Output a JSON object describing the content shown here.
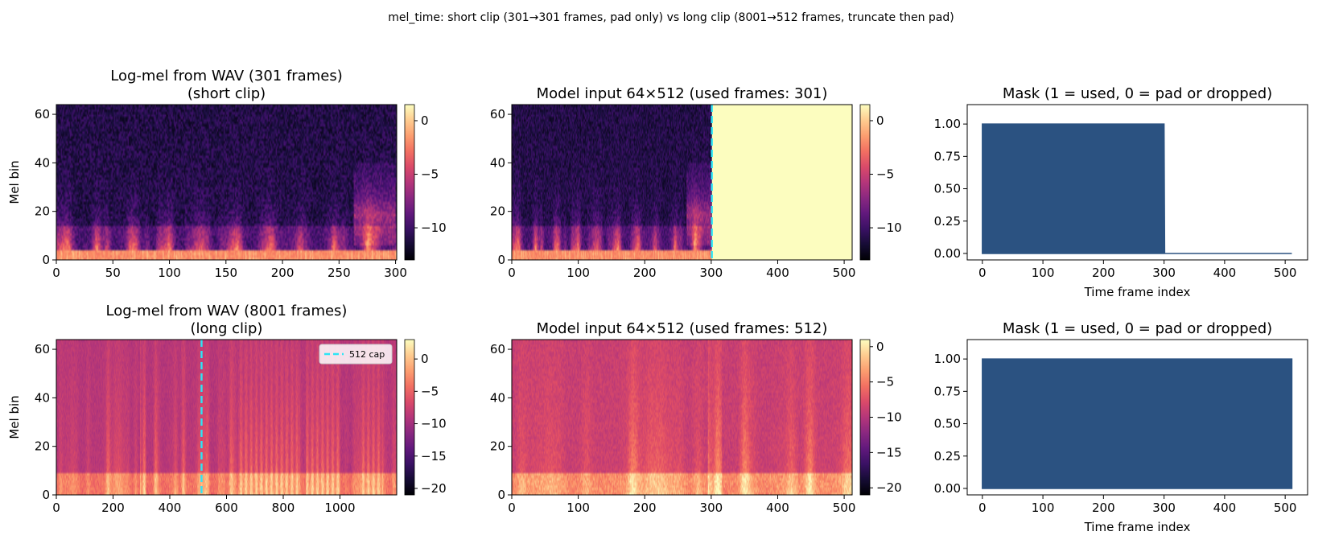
{
  "suptitle": "mel_time: short clip (301→301 frames, pad only) vs long clip (8001→512 frames, truncate then pad)",
  "colors": {
    "mask_fill": "#2b5281",
    "cap_line": "#2de5f5",
    "pad_fill": "#fdca8e",
    "colormap": "magma"
  },
  "chart_data": [
    {
      "id": "p00",
      "type": "heatmap",
      "title_lines": [
        "Log-mel from WAV (301 frames)",
        "(short clip)"
      ],
      "xlabel": "",
      "ylabel": "Mel bin",
      "xlim": [
        0,
        301
      ],
      "ylim": [
        0,
        64
      ],
      "xticks": [
        0,
        50,
        100,
        150,
        200,
        250,
        300
      ],
      "yticks": [
        0,
        20,
        40,
        60
      ],
      "frames": 301,
      "mel_bins": 64,
      "colorbar": {
        "range": [
          -13,
          1.5
        ],
        "ticks": [
          0,
          -5,
          -10
        ],
        "tick_labels": [
          "0",
          "−5",
          "−10"
        ]
      },
      "style": "short"
    },
    {
      "id": "p01",
      "type": "heatmap",
      "title_lines": [
        "Model input 64×512 (used frames: 301)"
      ],
      "xlabel": "",
      "ylabel": "",
      "xlim": [
        0,
        512
      ],
      "ylim": [
        0,
        64
      ],
      "xticks": [
        0,
        100,
        200,
        300,
        400,
        500
      ],
      "yticks": [
        0,
        20,
        40,
        60
      ],
      "used_frames": 301,
      "pad_value": 1.5,
      "marker_line_x": 301,
      "colorbar": {
        "range": [
          -13,
          1.5
        ],
        "ticks": [
          0,
          -5,
          -10
        ],
        "tick_labels": [
          "0",
          "−5",
          "−10"
        ]
      },
      "style": "short"
    },
    {
      "id": "p02",
      "type": "area",
      "title_lines": [
        "Mask (1 = used, 0 = pad or dropped)"
      ],
      "xlabel": "Time frame index",
      "ylabel": "",
      "xlim": [
        -25,
        537
      ],
      "ylim": [
        -0.05,
        1.15
      ],
      "xticks": [
        0,
        100,
        200,
        300,
        400,
        500
      ],
      "yticks": [
        0,
        0.25,
        0.5,
        0.75,
        1.0
      ],
      "ytick_labels": [
        "0.00",
        "0.25",
        "0.50",
        "0.75",
        "1.00"
      ],
      "series": [
        {
          "x": [
            0,
            300,
            301,
            511
          ],
          "y": [
            1,
            1,
            0,
            0
          ]
        }
      ]
    },
    {
      "id": "p10",
      "type": "heatmap",
      "title_lines": [
        "Log-mel from WAV (8001 frames)",
        "(long clip)"
      ],
      "xlabel": "",
      "ylabel": "Mel bin",
      "xlim": [
        0,
        1200
      ],
      "ylim": [
        0,
        64
      ],
      "xticks": [
        0,
        200,
        400,
        600,
        800,
        1000
      ],
      "yticks": [
        0,
        20,
        40,
        60
      ],
      "frames": 8001,
      "mel_bins": 64,
      "marker_line_x": 512,
      "legend": {
        "label": "512 cap",
        "position": "upper right"
      },
      "colorbar": {
        "range": [
          -21,
          3
        ],
        "ticks": [
          0,
          -5,
          -10,
          -15,
          -20
        ],
        "tick_labels": [
          "0",
          "−5",
          "−10",
          "−15",
          "−20"
        ]
      },
      "style": "long"
    },
    {
      "id": "p11",
      "type": "heatmap",
      "title_lines": [
        "Model input 64×512 (used frames: 512)"
      ],
      "xlabel": "",
      "ylabel": "",
      "xlim": [
        0,
        512
      ],
      "ylim": [
        0,
        64
      ],
      "xticks": [
        0,
        100,
        200,
        300,
        400,
        500
      ],
      "yticks": [
        0,
        20,
        40,
        60
      ],
      "used_frames": 512,
      "colorbar": {
        "range": [
          -21,
          1
        ],
        "ticks": [
          0,
          -5,
          -10,
          -15,
          -20
        ],
        "tick_labels": [
          "0",
          "−5",
          "−10",
          "−15",
          "−20"
        ]
      },
      "style": "long"
    },
    {
      "id": "p12",
      "type": "area",
      "title_lines": [
        "Mask (1 = used, 0 = pad or dropped)"
      ],
      "xlabel": "Time frame index",
      "ylabel": "",
      "xlim": [
        -25,
        537
      ],
      "ylim": [
        -0.05,
        1.15
      ],
      "xticks": [
        0,
        100,
        200,
        300,
        400,
        500
      ],
      "yticks": [
        0,
        0.25,
        0.5,
        0.75,
        1.0
      ],
      "ytick_labels": [
        "0.00",
        "0.25",
        "0.50",
        "0.75",
        "1.00"
      ],
      "series": [
        {
          "x": [
            0,
            511
          ],
          "y": [
            1,
            1
          ]
        }
      ]
    }
  ]
}
